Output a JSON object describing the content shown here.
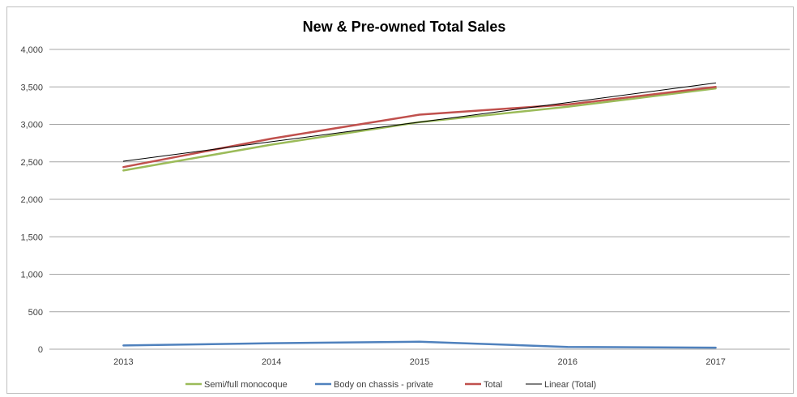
{
  "chart_data": {
    "type": "line",
    "title": "New & Pre-owned Total Sales",
    "xlabel": "",
    "ylabel": "",
    "categories": [
      "2013",
      "2014",
      "2015",
      "2016",
      "2017"
    ],
    "ylim": [
      0,
      4000
    ],
    "yticks": [
      0,
      500,
      1000,
      1500,
      2000,
      2500,
      3000,
      3500,
      4000
    ],
    "ytick_labels": [
      "0",
      "500",
      "1,000",
      "1,500",
      "2,000",
      "2,500",
      "3,000",
      "3,500",
      "4,000"
    ],
    "grid": true,
    "legend_position": "bottom",
    "series": [
      {
        "name": "Semi/full monocoque",
        "color": "#9bbb59",
        "width": 2.5,
        "values": [
          2385,
          2730,
          3030,
          3235,
          3480
        ]
      },
      {
        "name": "Body on chassis - private",
        "color": "#4f81bd",
        "width": 2.5,
        "values": [
          50,
          80,
          100,
          30,
          20
        ]
      },
      {
        "name": "Total",
        "color": "#c0504d",
        "width": 2.5,
        "values": [
          2430,
          2810,
          3130,
          3265,
          3500
        ]
      },
      {
        "name": "Linear (Total)",
        "color": "#000000",
        "width": 1,
        "values": [
          2508,
          2769,
          3030,
          3291,
          3552
        ]
      }
    ]
  }
}
